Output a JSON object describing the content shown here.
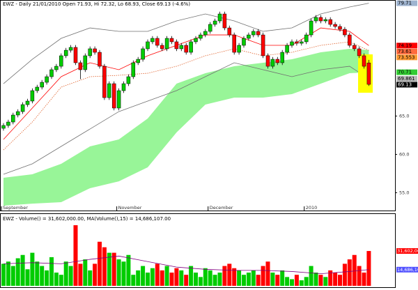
{
  "chart_data": {
    "type": "candlestick",
    "title": "EWZ - Daily 21/01/2010 Open 71.93, Hi 72.32, Lo 68.93, Close 69.13 (-4.6%)",
    "categories": [
      "September",
      null,
      null,
      null,
      null,
      null,
      null,
      null,
      null,
      null,
      null,
      null,
      null,
      null,
      null,
      null,
      null,
      null,
      null,
      null,
      null,
      null,
      null,
      null,
      "November",
      null,
      null,
      null,
      null,
      null,
      null,
      null,
      null,
      null,
      null,
      null,
      null,
      null,
      null,
      null,
      null,
      null,
      null,
      "December",
      null,
      null,
      null,
      null,
      null,
      null,
      null,
      null,
      null,
      null,
      null,
      null,
      null,
      null,
      null,
      null,
      null,
      null,
      null,
      "2010",
      null,
      null,
      null,
      null,
      null,
      null,
      null,
      null,
      null,
      null,
      null,
      null,
      null
    ],
    "open": [
      63.4,
      63.77,
      64.22,
      65.13,
      65.58,
      66.49,
      66.95,
      68.31,
      68.77,
      69.4,
      70.13,
      71.04,
      71.49,
      72.86,
      73.58,
      73.95,
      71.95,
      71.04,
      72.86,
      73.77,
      73.31,
      71.49,
      67.4,
      69.22,
      66.04,
      68.31,
      69.22,
      70.13,
      71.95,
      72.4,
      73.77,
      74.68,
      75.13,
      74.22,
      73.77,
      75.13,
      74.68,
      73.77,
      74.22,
      73.31,
      74.68,
      75.13,
      75.58,
      76.04,
      76.95,
      77.4,
      78.31,
      76.49,
      75.58,
      73.31,
      74.22,
      75.13,
      75.58,
      76.04,
      75.58,
      72.86,
      71.49,
      72.4,
      71.95,
      73.31,
      74.22,
      74.68,
      74.49,
      74.68,
      75.58,
      77.4,
      77.86,
      77.4,
      77.58,
      76.95,
      76.68,
      76.31,
      75.58,
      74.22,
      73.77,
      72.86,
      71.93
    ],
    "high": [
      64.07,
      64.52,
      65.43,
      65.88,
      66.79,
      67.25,
      68.61,
      69.07,
      69.7,
      70.43,
      71.34,
      71.79,
      73.16,
      73.88,
      74.25,
      74.25,
      72.25,
      73.16,
      74.07,
      74.07,
      73.61,
      71.79,
      69.52,
      69.52,
      68.61,
      69.52,
      70.43,
      72.25,
      72.7,
      74.07,
      74.98,
      75.43,
      75.43,
      74.52,
      75.43,
      75.43,
      74.98,
      74.52,
      74.52,
      74.98,
      75.43,
      75.88,
      76.34,
      77.25,
      77.7,
      78.61,
      78.61,
      76.79,
      75.88,
      74.52,
      75.43,
      75.88,
      76.34,
      76.34,
      75.88,
      73.16,
      72.7,
      72.7,
      73.61,
      74.52,
      74.98,
      74.98,
      74.98,
      75.88,
      77.7,
      78.16,
      78.16,
      77.88,
      77.88,
      77.25,
      76.98,
      76.61,
      75.88,
      74.52,
      74.07,
      73.16,
      72.32
    ],
    "low": [
      63.1,
      63.47,
      63.92,
      64.83,
      65.28,
      66.19,
      66.65,
      68.01,
      68.47,
      69.1,
      69.83,
      70.74,
      71.19,
      72.56,
      73.28,
      71.65,
      69.8,
      70.74,
      72.56,
      73.01,
      71.19,
      67.1,
      67.1,
      65.74,
      65.74,
      68.01,
      68.92,
      69.83,
      71.65,
      72.1,
      73.47,
      74.38,
      73.92,
      73.47,
      73.47,
      74.38,
      73.47,
      73.47,
      73.01,
      73.01,
      74.38,
      74.83,
      75.28,
      75.74,
      76.65,
      77.1,
      76.19,
      75.28,
      73.01,
      73.01,
      73.92,
      74.83,
      75.28,
      75.28,
      72.56,
      71.19,
      71.19,
      71.65,
      71.65,
      73.01,
      73.92,
      74.19,
      74.19,
      74.38,
      75.28,
      77.1,
      77.1,
      77.1,
      76.65,
      76.38,
      76.01,
      75.28,
      73.92,
      73.47,
      72.56,
      71.19,
      68.93
    ],
    "close": [
      63.77,
      64.22,
      65.13,
      65.58,
      66.49,
      66.95,
      68.31,
      68.77,
      69.4,
      70.13,
      71.04,
      71.49,
      72.86,
      73.58,
      73.95,
      71.95,
      71.04,
      72.86,
      73.77,
      73.31,
      71.49,
      67.4,
      69.22,
      66.04,
      68.31,
      69.22,
      70.13,
      71.95,
      72.4,
      73.77,
      74.68,
      75.13,
      74.22,
      73.77,
      75.13,
      74.68,
      73.77,
      74.22,
      73.31,
      74.68,
      75.13,
      75.58,
      76.04,
      76.95,
      77.4,
      78.31,
      76.49,
      75.58,
      73.31,
      74.22,
      75.13,
      75.58,
      76.04,
      75.58,
      72.86,
      71.49,
      72.4,
      71.95,
      73.31,
      74.22,
      74.68,
      74.49,
      74.68,
      75.58,
      77.4,
      77.86,
      77.4,
      77.58,
      76.95,
      76.68,
      76.31,
      75.58,
      74.22,
      73.77,
      72.86,
      71.49,
      69.13
    ],
    "up_color": "#00cc00",
    "down_color": "#ff0000",
    "ylim": [
      52.86,
      80.13
    ],
    "yticks": [
      {
        "value": 55,
        "label": "55.0"
      },
      {
        "value": 60,
        "label": "60.0"
      },
      {
        "value": 65,
        "label": "65.0"
      }
    ],
    "close_box_color": "#000000",
    "cloud": {
      "x": [
        0,
        6,
        12,
        18,
        24,
        30,
        36,
        42,
        48,
        54,
        60,
        66,
        72,
        76
      ],
      "top": [
        56.95,
        57.4,
        58.77,
        61.04,
        61.95,
        64.68,
        69.22,
        70.58,
        71.49,
        71.95,
        72.4,
        73.31,
        73.77,
        73.61
      ],
      "bottom": [
        53.31,
        53.58,
        53.77,
        55.59,
        56.49,
        58.31,
        62.86,
        66.49,
        67.4,
        67.4,
        67.86,
        69.22,
        70.58,
        70.71
      ],
      "color": "#98f598",
      "top_box_color": "#ff6a3d",
      "bottom_box_color": "#33cc33"
    },
    "overlays": [
      {
        "x": [
          0,
          6,
          12,
          18,
          24,
          30,
          36,
          42,
          48,
          54,
          60,
          66,
          72,
          76
        ],
        "values": [
          69.22,
          72.4,
          75.13,
          76.49,
          76.04,
          76.04,
          77.4,
          78.31,
          77.4,
          76.04,
          76.49,
          78.31,
          79.22,
          79.71
        ],
        "color": "#707070",
        "dashed": false,
        "box_color": "#9fb4d0"
      },
      {
        "x": [
          0,
          6,
          12,
          18,
          24,
          30,
          36,
          42,
          48,
          54,
          60,
          66,
          72,
          76
        ],
        "values": [
          61.95,
          66.04,
          70.13,
          71.95,
          71.04,
          72.86,
          74.22,
          75.58,
          75.58,
          74.22,
          74.22,
          76.49,
          76.04,
          74.19
        ],
        "color": "#ff0000",
        "dashed": false,
        "box_color": "#ff0000"
      },
      {
        "x": [
          0,
          6,
          12,
          18,
          24,
          30,
          36,
          42,
          48,
          54,
          60,
          66,
          72,
          76
        ],
        "values": [
          60.58,
          64.22,
          68.77,
          70.13,
          70.31,
          70.58,
          71.49,
          72.86,
          73.77,
          72.86,
          73.31,
          74.22,
          74.68,
          73.553
        ],
        "color": "#e0602a",
        "dashed": true,
        "box_color": "#ff9933"
      },
      {
        "x": [
          0,
          6,
          12,
          18,
          24,
          30,
          36,
          42,
          48,
          54,
          60,
          66,
          72,
          76
        ],
        "values": [
          57.4,
          58.77,
          61.04,
          63.31,
          65.58,
          66.95,
          68.31,
          70.13,
          71.95,
          71.04,
          70.13,
          71.04,
          71.49,
          69.861
        ],
        "color": "#707070",
        "dashed": false,
        "box_color": "#b8b8b8"
      }
    ],
    "volume": {
      "title": "EWZ - Volume() = 31,602,000.00, MA(Volume(),15) = 14,686,107.00",
      "values": [
        20000000,
        22000000,
        18000000,
        25000000,
        28000000,
        15000000,
        30000000,
        22000000,
        18000000,
        14000000,
        26000000,
        12000000,
        10000000,
        22000000,
        18000000,
        55000000,
        20000000,
        24000000,
        14000000,
        20000000,
        40000000,
        35000000,
        30000000,
        30000000,
        24000000,
        22000000,
        28000000,
        10000000,
        14000000,
        18000000,
        12000000,
        16000000,
        20000000,
        14000000,
        18000000,
        12000000,
        16000000,
        14000000,
        10000000,
        18000000,
        12000000,
        8000000,
        16000000,
        14000000,
        10000000,
        12000000,
        18000000,
        20000000,
        16000000,
        14000000,
        10000000,
        12000000,
        14000000,
        10000000,
        18000000,
        22000000,
        12000000,
        10000000,
        14000000,
        8000000,
        6000000,
        10000000,
        5000000,
        8000000,
        18000000,
        12000000,
        10000000,
        8000000,
        14000000,
        12000000,
        10000000,
        20000000,
        24000000,
        28000000,
        18000000,
        12000000,
        31602000
      ],
      "value_labels": [
        null,
        null,
        null,
        null,
        null,
        null,
        null,
        null,
        null,
        null,
        null,
        null,
        null,
        null,
        null,
        null,
        null,
        null,
        null,
        null,
        null,
        null,
        null,
        null,
        null,
        null,
        null,
        null,
        null,
        null,
        null,
        null,
        null,
        null,
        null,
        null,
        null,
        null,
        null,
        null,
        null,
        null,
        null,
        null,
        null,
        null,
        null,
        null,
        null,
        null,
        null,
        null,
        null,
        null,
        null,
        null,
        null,
        null,
        null,
        null,
        null,
        null,
        null,
        null,
        null,
        null,
        null,
        null,
        null,
        null,
        null,
        null,
        null,
        null,
        null,
        null,
        "31,602,000.00"
      ],
      "ylim": [
        0,
        62000000
      ],
      "box_color": "#ff0000",
      "ma": {
        "x": [
          0,
          6,
          12,
          18,
          24,
          30,
          36,
          42,
          48,
          54,
          60,
          66,
          72,
          76
        ],
        "values": [
          20000000,
          21000000,
          20000000,
          24000000,
          27000000,
          22000000,
          17000000,
          15000000,
          14000000,
          14000000,
          13000000,
          11000000,
          13000000,
          14686107
        ],
        "value_labels": [
          null,
          null,
          null,
          null,
          null,
          null,
          null,
          null,
          null,
          null,
          null,
          null,
          null,
          "14,686,107.00"
        ],
        "color": "#800080",
        "box_color": "#5050ff"
      }
    }
  }
}
